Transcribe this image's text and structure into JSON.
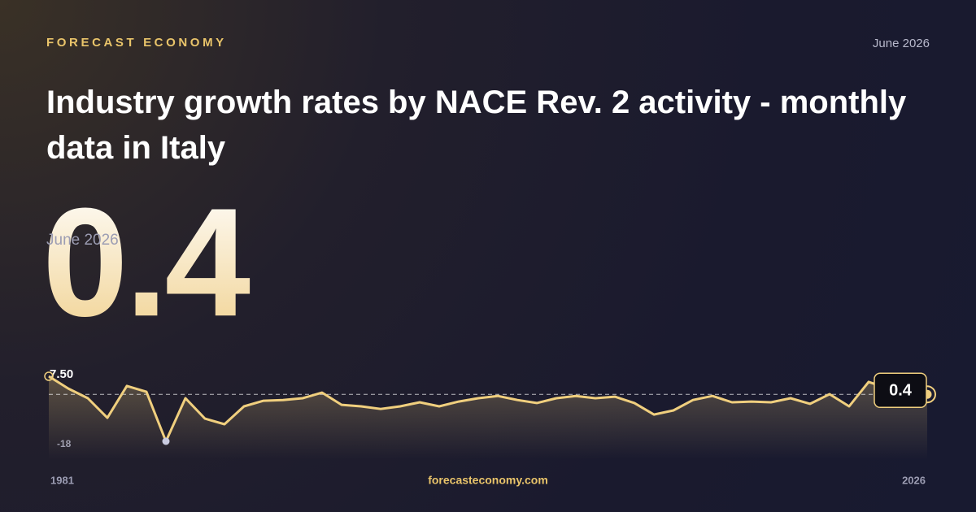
{
  "brand": "FORECAST ECONOMY",
  "date": "June 2026",
  "title": "Industry growth rates by NACE Rev. 2 activity - monthly data in Italy",
  "headline": {
    "value": 0.4,
    "label": "June 2026"
  },
  "footer": "forecasteconomy.com",
  "chart_data": {
    "type": "line",
    "x": [
      1981,
      1982,
      1983,
      1984,
      1985,
      1986,
      1987,
      1988,
      1989,
      1990,
      1991,
      1992,
      1993,
      1994,
      1995,
      1996,
      1997,
      1998,
      1999,
      2000,
      2001,
      2002,
      2003,
      2004,
      2005,
      2006,
      2007,
      2008,
      2009,
      2010,
      2011,
      2012,
      2013,
      2014,
      2015,
      2016,
      2017,
      2018,
      2019,
      2020,
      2021,
      2022,
      2023,
      2024,
      2025,
      2026
    ],
    "series": [
      {
        "color": "#f0cf7e",
        "values": [
          7.5,
          2.7,
          -1.1,
          -8.8,
          3.7,
          1.4,
          -18,
          -1.1,
          -9.1,
          -11.3,
          -4.3,
          -2.1,
          -1.8,
          -1.1,
          1.1,
          -3.7,
          -4.3,
          -5.3,
          -4.3,
          -2.7,
          -4.3,
          -2.4,
          -1.1,
          -0.2,
          -1.8,
          -3.0,
          -1.1,
          -0.2,
          -1.1,
          -0.5,
          -3.0,
          -7.5,
          -5.9,
          -1.8,
          -0.2,
          -2.7,
          -2.4,
          -2.7,
          -1.1,
          -3.3,
          0.5,
          -4.3,
          5.3,
          2.7,
          -1.1,
          0.4
        ]
      }
    ],
    "xlim": [
      1981,
      2026
    ],
    "xticks": [
      1981,
      2026
    ],
    "ylim": [
      -18,
      7.5
    ],
    "yticks": [
      -18,
      {
        "value": 7.5,
        "label": "7.50"
      }
    ]
  }
}
